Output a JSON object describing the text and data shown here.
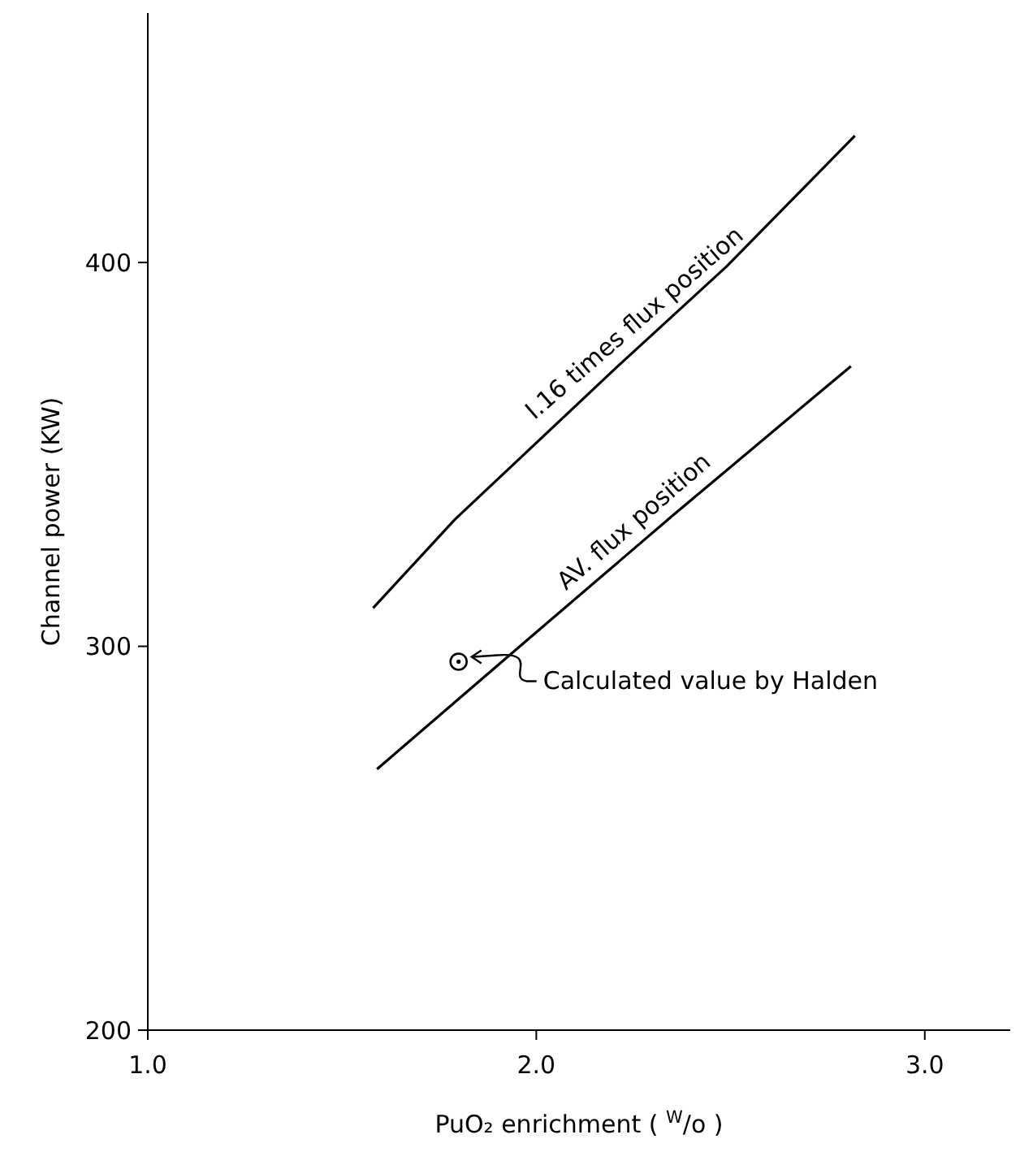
{
  "chart_data": {
    "type": "line",
    "xlabel": "PuO₂  enrichment  ( $^{W}$/o )",
    "ylabel": "Channel power  (KW)",
    "xlim": [
      1.0,
      3.22
    ],
    "ylim": [
      200,
      465
    ],
    "xticks": [
      {
        "value": 1,
        "label": "1.0"
      },
      {
        "value": 2,
        "label": "2.0"
      },
      {
        "value": 3,
        "label": "3.0"
      }
    ],
    "yticks": [
      200,
      300,
      400
    ],
    "grid": false,
    "legend": false,
    "series": [
      {
        "name": "I.16 times flux position",
        "color": "#000000",
        "x": [
          1.58,
          1.79,
          2.21,
          2.49,
          2.82
        ],
        "values": [
          310,
          333,
          373,
          399,
          433
        ]
      },
      {
        "name": "AV. flux position",
        "color": "#000000",
        "x": [
          1.59,
          1.9,
          2.35,
          2.81
        ],
        "values": [
          268,
          295,
          334,
          373
        ]
      },
      {
        "color": "#000000",
        "type": "scatter",
        "marker": "circle",
        "x": [
          1.8
        ],
        "values": [
          296
        ]
      }
    ],
    "annotations": [
      "Calculated value by Halden"
    ]
  }
}
